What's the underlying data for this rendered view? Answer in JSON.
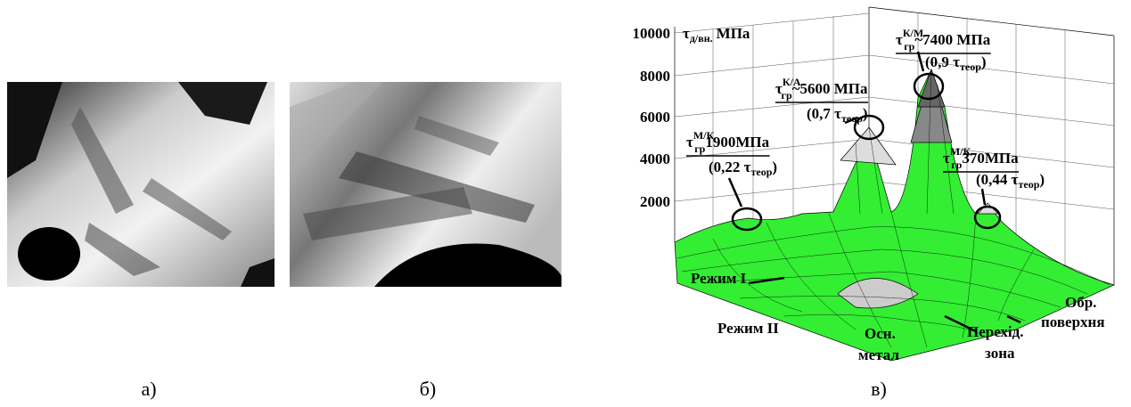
{
  "panels": {
    "a": {
      "label": "а)"
    },
    "b": {
      "label": "б)"
    },
    "c": {
      "label": "в)",
      "z_axis": {
        "ticks": [
          "10000",
          "8000",
          "6000",
          "4000",
          "2000"
        ],
        "symbol": "τ",
        "subscript": "д/вн.",
        "unit": "МПа"
      },
      "annotations": [
        {
          "symbol": "τ",
          "superscript": "М/К",
          "subscript": "гр",
          "value": "1900МПа",
          "ratio_open": "(0,22 τ",
          "ratio_subscript": "теор",
          "ratio_close": ")"
        },
        {
          "symbol": "τ",
          "superscript": "К/А",
          "subscript": "гр",
          "value": "~5600 МПа",
          "ratio_open": "(0,7 τ",
          "ratio_subscript": "теор",
          "ratio_close": ")"
        },
        {
          "symbol": "τ",
          "superscript": "К/М",
          "subscript": "гр",
          "value": "~7400 МПа",
          "ratio_open": "(0,9 τ",
          "ratio_subscript": "теор",
          "ratio_close": ")"
        },
        {
          "symbol": "τ",
          "superscript": "М/К",
          "subscript": "гр",
          "value": "370МПа",
          "ratio_open": "(0,44 τ",
          "ratio_subscript": "теор",
          "ratio_close": ")"
        }
      ],
      "axis_labels": [
        "Режим I",
        "Режим II",
        "Осн.",
        "метал",
        "Перехід.",
        "зона",
        "Обр.",
        "поверхня"
      ]
    }
  }
}
